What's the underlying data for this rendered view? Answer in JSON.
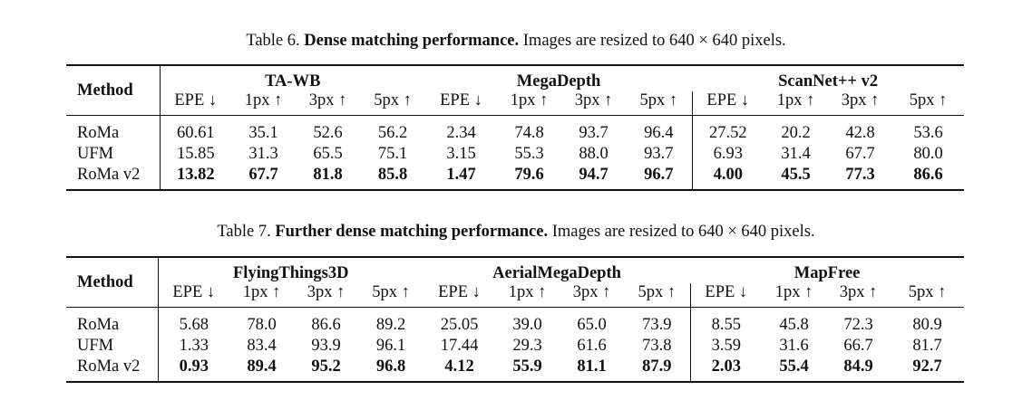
{
  "table6": {
    "caption_label": "Table 6.",
    "caption_bold": "Dense matching performance.",
    "caption_rest": "Images are resized to 640 × 640 pixels.",
    "method_header": "Method",
    "groups": [
      "TA-WB",
      "MegaDepth",
      "ScanNet++ v2"
    ],
    "metrics": [
      "EPE ↓",
      "1px ↑",
      "3px ↑",
      "5px ↑"
    ],
    "rows": [
      {
        "method": "RoMa",
        "values": [
          "60.61",
          "35.1",
          "52.6",
          "56.2",
          "2.34",
          "74.8",
          "93.7",
          "96.4",
          "27.52",
          "20.2",
          "42.8",
          "53.6"
        ]
      },
      {
        "method": "UFM",
        "values": [
          "15.85",
          "31.3",
          "65.5",
          "75.1",
          "3.15",
          "55.3",
          "88.0",
          "93.7",
          "6.93",
          "31.4",
          "67.7",
          "80.0"
        ]
      },
      {
        "method": "RoMa v2",
        "values": [
          "13.82",
          "67.7",
          "81.8",
          "85.8",
          "1.47",
          "79.6",
          "94.7",
          "96.7",
          "4.00",
          "45.5",
          "77.3",
          "86.6"
        ]
      }
    ]
  },
  "table7": {
    "caption_label": "Table 7.",
    "caption_bold": "Further dense matching performance.",
    "caption_rest": "Images are resized to 640 × 640 pixels.",
    "method_header": "Method",
    "groups": [
      "FlyingThings3D",
      "AerialMegaDepth",
      "MapFree"
    ],
    "metrics": [
      "EPE ↓",
      "1px ↑",
      "3px ↑",
      "5px ↑"
    ],
    "rows": [
      {
        "method": "RoMa",
        "values": [
          "5.68",
          "78.0",
          "86.6",
          "89.2",
          "25.05",
          "39.0",
          "65.0",
          "73.9",
          "8.55",
          "45.8",
          "72.3",
          "80.9"
        ]
      },
      {
        "method": "UFM",
        "values": [
          "1.33",
          "83.4",
          "93.9",
          "96.1",
          "17.44",
          "29.3",
          "61.6",
          "73.8",
          "3.59",
          "31.6",
          "66.7",
          "81.7"
        ]
      },
      {
        "method": "RoMa v2",
        "values": [
          "0.93",
          "89.4",
          "95.2",
          "96.8",
          "4.12",
          "55.9",
          "81.1",
          "87.9",
          "2.03",
          "55.4",
          "84.9",
          "92.7"
        ]
      }
    ]
  }
}
